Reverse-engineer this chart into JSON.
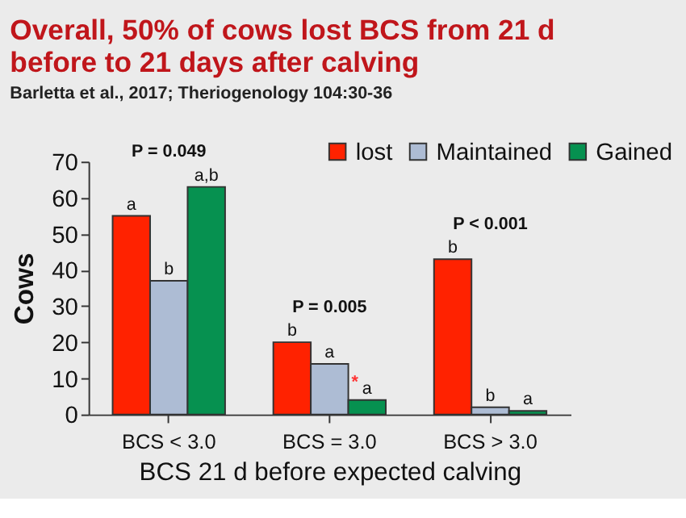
{
  "chart_data": {
    "type": "bar",
    "title": [
      "Overall, 50% of cows lost BCS from 21 d",
      "before to 21 days after calving"
    ],
    "subtitle": "Barletta et al., 2017; Theriogenology 104:30-36",
    "xlabel": "BCS 21 d before expected calving",
    "ylabel": "Cows",
    "categories": [
      "BCS < 3.0",
      "BCS = 3.0",
      "BCS > 3.0"
    ],
    "series": [
      {
        "name": "lost",
        "color": "#ff2200",
        "values": [
          55,
          20,
          43
        ],
        "value_labels": [
          "a",
          "b",
          "b"
        ]
      },
      {
        "name": "Maintained",
        "color": "#adbcd4",
        "values": [
          37,
          14,
          2
        ],
        "value_labels": [
          "b",
          "a",
          "b"
        ]
      },
      {
        "name": "Gained",
        "color": "#069150",
        "values": [
          63,
          4,
          1
        ],
        "value_labels": [
          "a,b",
          "a",
          "a"
        ]
      }
    ],
    "ylim": [
      0,
      70
    ],
    "yticks": [
      0,
      10,
      20,
      30,
      40,
      50,
      60,
      70
    ],
    "grid": false,
    "legend": "top right",
    "annotations": [
      "P = 0.049",
      "P = 0.005",
      "P < 0.001",
      "*"
    ]
  }
}
